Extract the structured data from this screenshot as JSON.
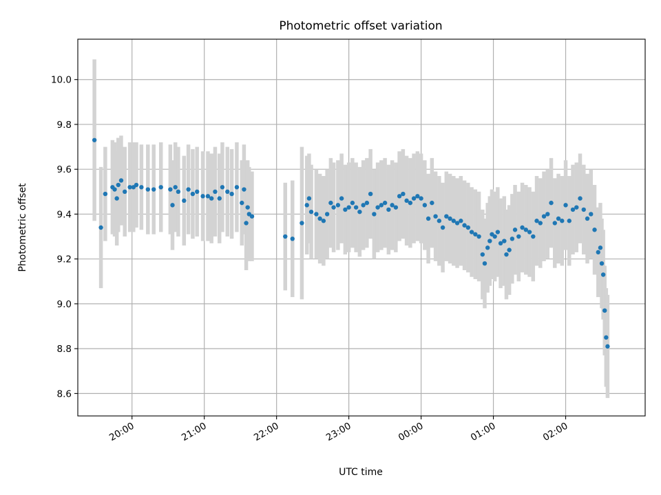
{
  "chart_data": {
    "type": "scatter",
    "title": "Photometric offset variation",
    "xlabel": "UTC time",
    "ylabel": "Photometric offset",
    "x_unit": "UTC hours (hours past 24 are the following day)",
    "xlim": [
      19.25,
      27.1
    ],
    "ylim": [
      8.5,
      10.18
    ],
    "x_tick_hours": [
      20,
      21,
      22,
      23,
      24,
      25,
      26
    ],
    "x_tick_labels": [
      "20:00",
      "21:00",
      "22:00",
      "23:00",
      "00:00",
      "01:00",
      "02:00"
    ],
    "y_ticks": [
      8.6,
      8.8,
      9.0,
      9.2,
      9.4,
      9.6,
      9.8,
      10.0
    ],
    "y_tick_labels": [
      "8.6",
      "8.8",
      "9.0",
      "9.2",
      "9.4",
      "9.6",
      "9.8",
      "10.0"
    ],
    "grid": true,
    "colors": {
      "marker": "#1f77b4",
      "errorbar": "#d3d3d3"
    },
    "series": [
      {
        "points": [
          [
            19.48,
            9.73,
            0.36
          ],
          [
            19.57,
            9.34,
            0.27
          ],
          [
            19.63,
            9.49,
            0.21
          ],
          [
            19.73,
            9.52,
            0.21
          ],
          [
            19.76,
            9.51,
            0.21
          ],
          [
            19.79,
            9.47,
            0.21
          ],
          [
            19.81,
            9.53,
            0.21
          ],
          [
            19.85,
            9.55,
            0.2
          ],
          [
            19.9,
            9.5,
            0.2
          ],
          [
            19.97,
            9.52,
            0.2
          ],
          [
            20.02,
            9.52,
            0.2
          ],
          [
            20.06,
            9.53,
            0.19
          ],
          [
            20.13,
            9.52,
            0.19
          ],
          [
            20.22,
            9.51,
            0.2
          ],
          [
            20.3,
            9.51,
            0.2
          ],
          [
            20.4,
            9.52,
            0.2
          ],
          [
            20.53,
            9.51,
            0.2
          ],
          [
            20.56,
            9.44,
            0.2
          ],
          [
            20.6,
            9.52,
            0.2
          ],
          [
            20.64,
            9.5,
            0.2
          ],
          [
            20.72,
            9.46,
            0.2
          ],
          [
            20.78,
            9.51,
            0.2
          ],
          [
            20.84,
            9.49,
            0.2
          ],
          [
            20.9,
            9.5,
            0.2
          ],
          [
            20.98,
            9.48,
            0.2
          ],
          [
            21.05,
            9.48,
            0.2
          ],
          [
            21.1,
            9.47,
            0.2
          ],
          [
            21.15,
            9.5,
            0.2
          ],
          [
            21.21,
            9.47,
            0.2
          ],
          [
            21.25,
            9.52,
            0.2
          ],
          [
            21.32,
            9.5,
            0.2
          ],
          [
            21.38,
            9.49,
            0.2
          ],
          [
            21.45,
            9.52,
            0.2
          ],
          [
            21.52,
            9.45,
            0.19
          ],
          [
            21.55,
            9.51,
            0.2
          ],
          [
            21.58,
            9.36,
            0.21
          ],
          [
            21.6,
            9.43,
            0.21
          ],
          [
            21.62,
            9.4,
            0.21
          ],
          [
            21.66,
            9.39,
            0.2
          ],
          [
            22.12,
            9.3,
            0.24
          ],
          [
            22.22,
            9.29,
            0.26
          ],
          [
            22.35,
            9.36,
            0.34
          ],
          [
            22.42,
            9.44,
            0.22
          ],
          [
            22.45,
            9.47,
            0.2
          ],
          [
            22.48,
            9.41,
            0.21
          ],
          [
            22.55,
            9.4,
            0.2
          ],
          [
            22.6,
            9.38,
            0.2
          ],
          [
            22.65,
            9.37,
            0.2
          ],
          [
            22.7,
            9.4,
            0.2
          ],
          [
            22.75,
            9.45,
            0.2
          ],
          [
            22.79,
            9.43,
            0.2
          ],
          [
            22.85,
            9.44,
            0.2
          ],
          [
            22.9,
            9.47,
            0.2
          ],
          [
            22.95,
            9.42,
            0.2
          ],
          [
            23.0,
            9.43,
            0.2
          ],
          [
            23.05,
            9.45,
            0.2
          ],
          [
            23.1,
            9.43,
            0.2
          ],
          [
            23.15,
            9.41,
            0.2
          ],
          [
            23.2,
            9.44,
            0.2
          ],
          [
            23.25,
            9.45,
            0.2
          ],
          [
            23.3,
            9.49,
            0.2
          ],
          [
            23.35,
            9.4,
            0.2
          ],
          [
            23.4,
            9.43,
            0.2
          ],
          [
            23.45,
            9.44,
            0.2
          ],
          [
            23.5,
            9.45,
            0.2
          ],
          [
            23.55,
            9.42,
            0.2
          ],
          [
            23.6,
            9.44,
            0.2
          ],
          [
            23.65,
            9.43,
            0.2
          ],
          [
            23.7,
            9.48,
            0.2
          ],
          [
            23.75,
            9.49,
            0.2
          ],
          [
            23.8,
            9.46,
            0.2
          ],
          [
            23.85,
            9.45,
            0.2
          ],
          [
            23.9,
            9.47,
            0.2
          ],
          [
            23.95,
            9.48,
            0.2
          ],
          [
            24.0,
            9.47,
            0.2
          ],
          [
            24.05,
            9.44,
            0.2
          ],
          [
            24.1,
            9.38,
            0.2
          ],
          [
            24.15,
            9.45,
            0.2
          ],
          [
            24.2,
            9.39,
            0.2
          ],
          [
            24.25,
            9.37,
            0.2
          ],
          [
            24.3,
            9.34,
            0.2
          ],
          [
            24.35,
            9.39,
            0.2
          ],
          [
            24.4,
            9.38,
            0.2
          ],
          [
            24.45,
            9.37,
            0.2
          ],
          [
            24.5,
            9.36,
            0.2
          ],
          [
            24.55,
            9.37,
            0.2
          ],
          [
            24.6,
            9.35,
            0.2
          ],
          [
            24.65,
            9.34,
            0.2
          ],
          [
            24.7,
            9.32,
            0.2
          ],
          [
            24.75,
            9.31,
            0.2
          ],
          [
            24.8,
            9.3,
            0.2
          ],
          [
            24.85,
            9.22,
            0.2
          ],
          [
            24.88,
            9.18,
            0.2
          ],
          [
            24.92,
            9.25,
            0.2
          ],
          [
            24.95,
            9.28,
            0.2
          ],
          [
            24.98,
            9.31,
            0.2
          ],
          [
            25.02,
            9.3,
            0.2
          ],
          [
            25.06,
            9.32,
            0.2
          ],
          [
            25.1,
            9.27,
            0.2
          ],
          [
            25.15,
            9.28,
            0.2
          ],
          [
            25.18,
            9.22,
            0.2
          ],
          [
            25.22,
            9.24,
            0.2
          ],
          [
            25.26,
            9.29,
            0.2
          ],
          [
            25.3,
            9.33,
            0.2
          ],
          [
            25.35,
            9.3,
            0.2
          ],
          [
            25.4,
            9.34,
            0.2
          ],
          [
            25.45,
            9.33,
            0.2
          ],
          [
            25.5,
            9.32,
            0.2
          ],
          [
            25.55,
            9.3,
            0.2
          ],
          [
            25.6,
            9.37,
            0.2
          ],
          [
            25.65,
            9.36,
            0.2
          ],
          [
            25.7,
            9.39,
            0.2
          ],
          [
            25.75,
            9.4,
            0.2
          ],
          [
            25.8,
            9.45,
            0.2
          ],
          [
            25.85,
            9.36,
            0.2
          ],
          [
            25.9,
            9.38,
            0.2
          ],
          [
            25.95,
            9.37,
            0.2
          ],
          [
            26.0,
            9.44,
            0.2
          ],
          [
            26.05,
            9.37,
            0.2
          ],
          [
            26.1,
            9.42,
            0.2
          ],
          [
            26.15,
            9.43,
            0.2
          ],
          [
            26.2,
            9.47,
            0.2
          ],
          [
            26.25,
            9.42,
            0.2
          ],
          [
            26.3,
            9.38,
            0.2
          ],
          [
            26.35,
            9.4,
            0.2
          ],
          [
            26.4,
            9.33,
            0.2
          ],
          [
            26.45,
            9.23,
            0.2
          ],
          [
            26.48,
            9.25,
            0.2
          ],
          [
            26.5,
            9.18,
            0.2
          ],
          [
            26.52,
            9.13,
            0.2
          ],
          [
            26.54,
            8.97,
            0.2
          ],
          [
            26.56,
            8.85,
            0.22
          ],
          [
            26.58,
            8.81,
            0.23
          ]
        ]
      }
    ]
  }
}
